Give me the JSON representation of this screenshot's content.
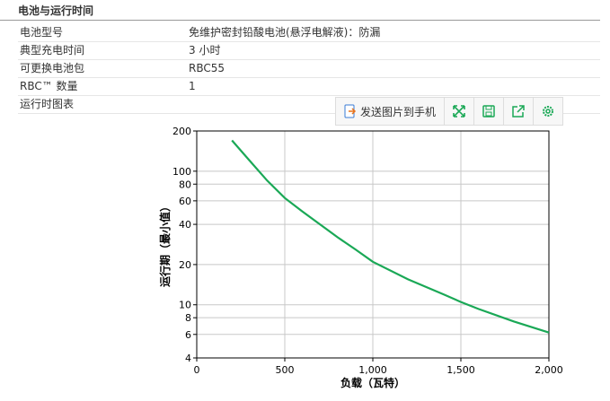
{
  "header": {
    "title": "电池与运行时间"
  },
  "table": {
    "rows": [
      [
        "电池型号",
        "免维护密封铅酸电池(悬浮电解液)：防漏"
      ],
      [
        "典型充电时间",
        "3 小时"
      ],
      [
        "可更换电池包",
        "RBC55"
      ],
      [
        "RBC™ 数量",
        "1"
      ],
      [
        "运行时图表"
      ]
    ]
  },
  "toolbar": {
    "send_button": "发送图片到手机"
  },
  "chart_data": {
    "type": "line",
    "x_label": "负载（瓦特）",
    "y_label": "运行期（最小值）",
    "x": [
      200,
      300,
      400,
      500,
      600,
      700,
      800,
      900,
      1000,
      1200,
      1400,
      1500,
      1600,
      1800,
      2000
    ],
    "values": [
      170,
      120,
      85,
      63,
      50,
      40,
      32,
      26,
      21,
      15.5,
      12,
      10.5,
      9.3,
      7.5,
      6.2
    ],
    "color": "#1aa856",
    "xlim": [
      0,
      2000
    ],
    "xticks": [
      0,
      500,
      {
        "value": 1000,
        "label": "1,000"
      },
      {
        "value": 1500,
        "label": "1,500"
      },
      {
        "value": 2000,
        "label": "2,000"
      }
    ],
    "ylim": [
      4,
      200
    ],
    "yticks": [
      4,
      6,
      8,
      10,
      20,
      40,
      60,
      80,
      100,
      200
    ],
    "log_y": true,
    "grid": true
  }
}
